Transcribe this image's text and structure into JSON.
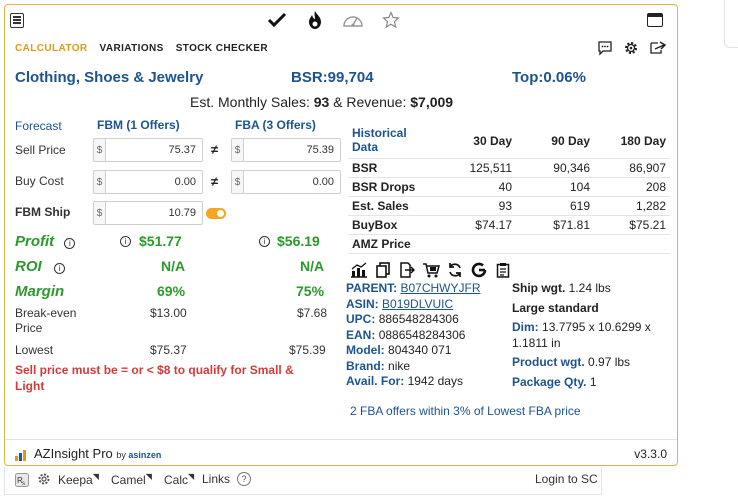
{
  "tabs": [
    "CALCULATOR",
    "VARIATIONS",
    "STOCK CHECKER"
  ],
  "header": {
    "category": "Clothing, Shoes & Jewelry",
    "bsr": "BSR:99,704",
    "top": "Top:0.06%"
  },
  "estimate": {
    "label": "Est. Monthly Sales:",
    "sales": "93",
    "mid": "& Revenue:",
    "revenue": "$7,009"
  },
  "calc": {
    "forecast_label": "Forecast",
    "fbm_header": "FBM (1 Offers)",
    "fba_header": "FBA (3 Offers)",
    "sell_price_label": "Sell Price",
    "buy_cost_label": "Buy Cost",
    "fbm_ship_label": "FBM Ship",
    "currency": "$",
    "not_equal": "≠",
    "fbm_sell": "75.37",
    "fba_sell": "75.39",
    "fbm_cost": "0.00",
    "fba_cost": "0.00",
    "fbm_ship": "10.79",
    "profit_label": "Profit",
    "profit_fbm": "$51.77",
    "profit_fba": "$56.19",
    "roi_label": "ROI",
    "roi_fbm": "N/A",
    "roi_fba": "N/A",
    "margin_label": "Margin",
    "margin_fbm": "69%",
    "margin_fba": "75%",
    "breakeven_label": "Break-even Price",
    "breakeven_fbm": "$13.00",
    "breakeven_fba": "$7.68",
    "lowest_label": "Lowest",
    "lowest_fbm": "$75.37",
    "lowest_fba": "$75.39",
    "warning": "Sell price must be = or < $8 to qualify for Small & Light",
    "info_glyph": "i"
  },
  "history": {
    "title": "Historical Data",
    "columns": [
      "30 Day",
      "90 Day",
      "180 Day"
    ],
    "rows": [
      {
        "label": "BSR",
        "values": [
          "125,511",
          "90,346",
          "86,907"
        ]
      },
      {
        "label": "BSR Drops",
        "values": [
          "40",
          "104",
          "208"
        ]
      },
      {
        "label": "Est. Sales",
        "values": [
          "93",
          "619",
          "1,282"
        ]
      },
      {
        "label": "BuyBox",
        "values": [
          "$74.17",
          "$71.81",
          "$75.21"
        ]
      },
      {
        "label": "AMZ Price",
        "values": [
          "",
          "",
          ""
        ]
      }
    ]
  },
  "product": {
    "parent_label": "PARENT:",
    "parent": "B07CHWYJFR",
    "asin_label": "ASIN:",
    "asin": "B019DLVUIC",
    "upc_label": "UPC:",
    "upc": "886548284306",
    "ean_label": "EAN:",
    "ean": "0886548284306",
    "model_label": "Model:",
    "model": "804340 071",
    "brand_label": "Brand:",
    "brand": "nike",
    "avail_label": "Avail. For:",
    "avail": "1942 days",
    "ship_label": "Ship wgt.",
    "ship": "1.24 lbs",
    "size_tier": "Large standard",
    "dim_label": "Dim:",
    "dim": "13.7795 x 10.6299 x 1.1811 in",
    "product_wgt_label": "Product wgt.",
    "product_wgt": "0.97 lbs",
    "pkg_label": "Package Qty.",
    "pkg": "1",
    "offers_note": "2 FBA offers within 3% of Lowest FBA price"
  },
  "footer": {
    "brand": "AZInsight Pro",
    "by": "by",
    "author": "asinzen",
    "version": "v3.3.0"
  },
  "bottom_bar": {
    "keepa": "Keepa",
    "camel": "Camel",
    "calc": "Calc",
    "links": "Links",
    "help": "?",
    "login": "Login to SC"
  },
  "colors": {
    "accent": "#e09a12",
    "link": "#1c5490",
    "profit": "#2a9a2a",
    "warning": "#d33a3a",
    "border": "#e0b34a"
  },
  "icons": [
    "list-icon",
    "check-icon",
    "flame-icon",
    "gauge-icon",
    "star-icon",
    "window-icon",
    "comment-icon",
    "gear-icon",
    "share-icon"
  ]
}
